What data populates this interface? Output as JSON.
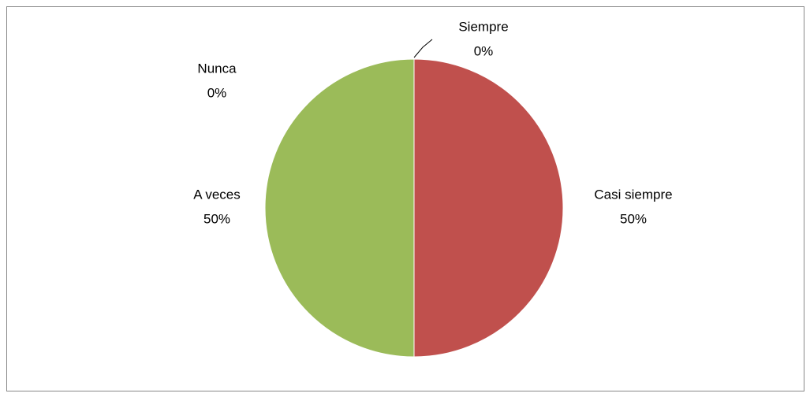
{
  "chart_data": {
    "type": "pie",
    "categories": [
      "Siempre",
      "Casi siempre",
      "A veces",
      "Nunca"
    ],
    "values": [
      0,
      50,
      50,
      0
    ],
    "value_labels": [
      "0%",
      "50%",
      "50%",
      "0%"
    ],
    "colors": [
      "#4f81bd",
      "#c0504d",
      "#9bbb59",
      "#8064a2"
    ]
  }
}
